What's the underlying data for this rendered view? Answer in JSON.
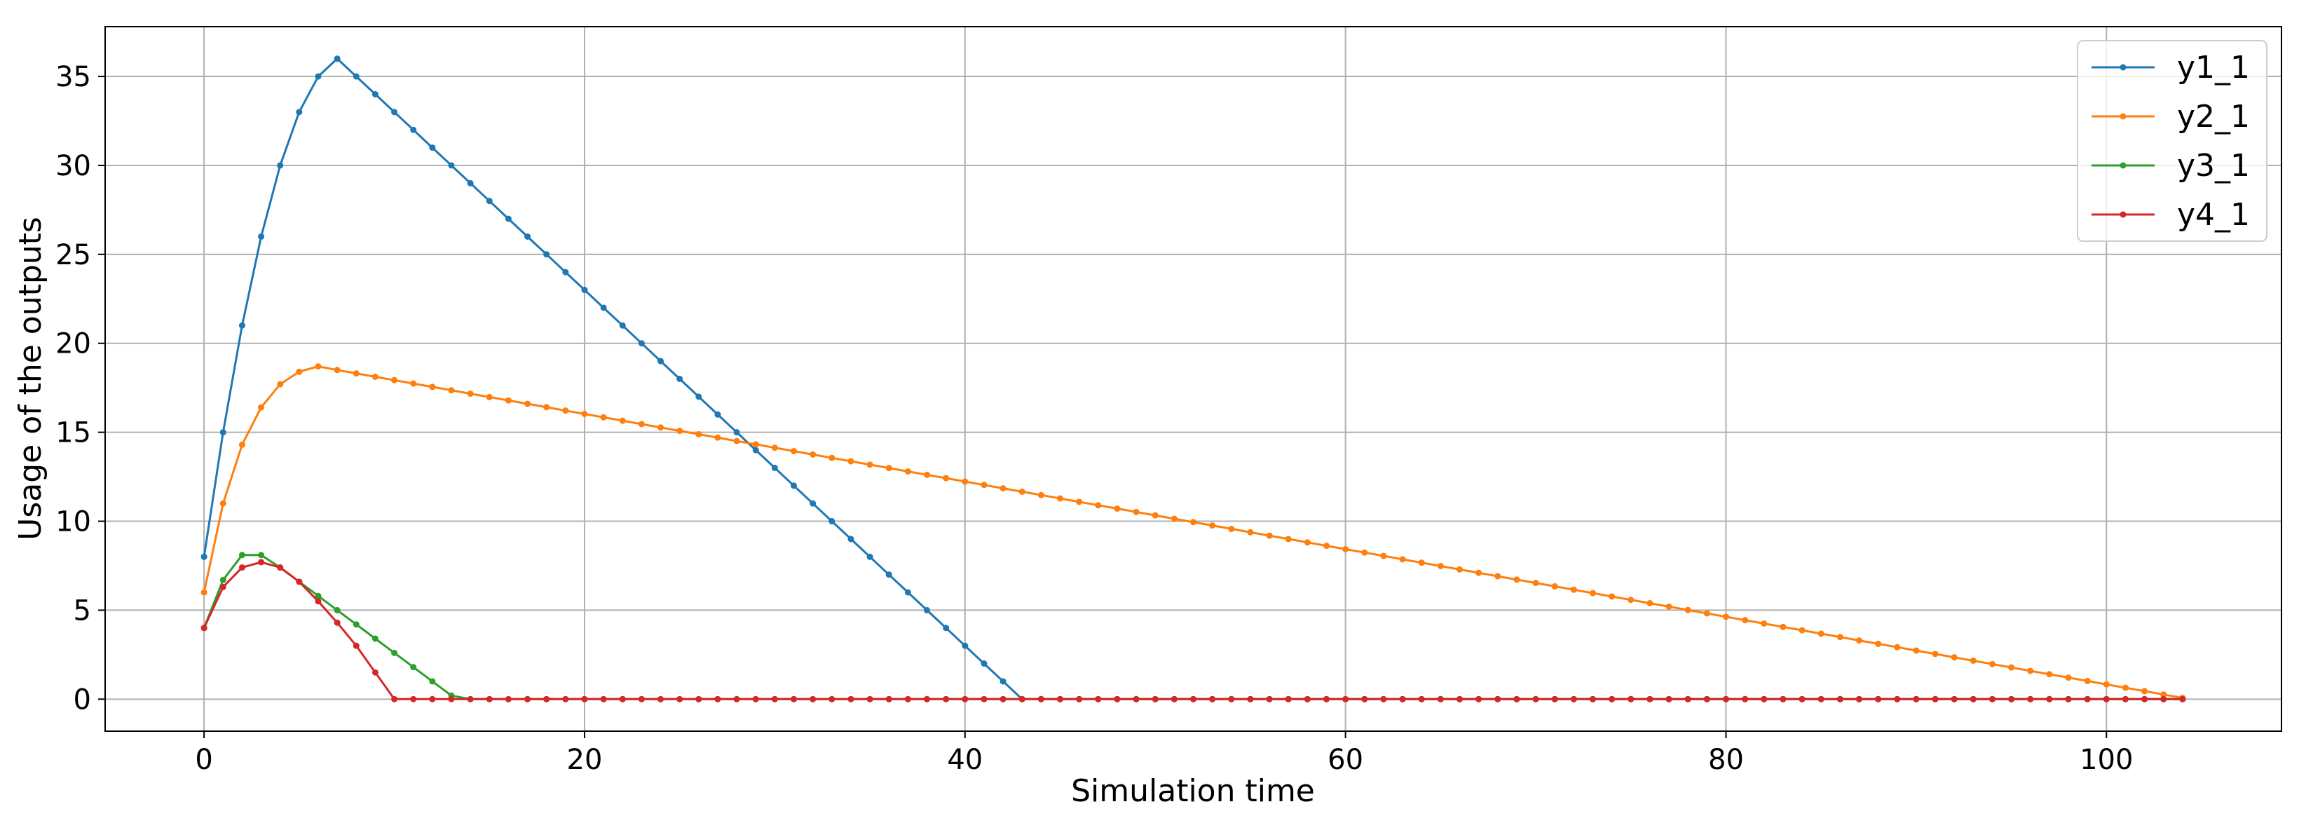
{
  "chart_data": {
    "type": "line",
    "xlabel": "Simulation time",
    "ylabel": "Usage of the outputs",
    "xlim": [
      -5.2,
      109.2
    ],
    "ylim": [
      -1.8,
      37.8
    ],
    "xticks": [
      0,
      20,
      40,
      60,
      80,
      100
    ],
    "yticks": [
      0,
      5,
      10,
      15,
      20,
      25,
      30,
      35
    ],
    "grid": true,
    "legend": "top-right",
    "x": [
      0,
      1,
      2,
      3,
      4,
      5,
      6,
      7,
      8,
      9,
      10,
      11,
      12,
      13,
      14,
      15,
      16,
      17,
      18,
      19,
      20,
      21,
      22,
      23,
      24,
      25,
      26,
      27,
      28,
      29,
      30,
      31,
      32,
      33,
      34,
      35,
      36,
      37,
      38,
      39,
      40,
      41,
      42,
      43,
      44,
      45,
      46,
      47,
      48,
      49,
      50,
      51,
      52,
      53,
      54,
      55,
      56,
      57,
      58,
      59,
      60,
      61,
      62,
      63,
      64,
      65,
      66,
      67,
      68,
      69,
      70,
      71,
      72,
      73,
      74,
      75,
      76,
      77,
      78,
      79,
      80,
      81,
      82,
      83,
      84,
      85,
      86,
      87,
      88,
      89,
      90,
      91,
      92,
      93,
      94,
      95,
      96,
      97,
      98,
      99,
      100,
      101,
      102,
      103,
      104
    ],
    "series": [
      {
        "name": "y1_1",
        "color": "#1f77b4",
        "values": [
          8,
          15,
          21,
          26,
          30,
          33,
          35,
          36,
          35,
          34,
          33,
          32,
          31,
          30,
          29,
          28,
          27,
          26,
          25,
          24,
          23,
          22,
          21,
          20,
          19,
          18,
          17,
          16,
          15,
          14,
          13,
          12,
          11,
          10,
          9,
          8,
          7,
          6,
          5,
          4,
          3,
          2,
          1,
          0,
          0,
          0,
          0,
          0,
          0,
          0,
          0,
          0,
          0,
          0,
          0,
          0,
          0,
          0,
          0,
          0,
          0,
          0,
          0,
          0,
          0,
          0,
          0,
          0,
          0,
          0,
          0,
          0,
          0,
          0,
          0,
          0,
          0,
          0,
          0,
          0,
          0,
          0,
          0,
          0,
          0,
          0,
          0,
          0,
          0,
          0,
          0,
          0,
          0,
          0,
          0,
          0,
          0,
          0,
          0,
          0,
          0,
          0,
          0,
          0,
          0
        ]
      },
      {
        "name": "y2_1",
        "color": "#ff7f0e",
        "values": [
          6,
          11,
          14.3,
          16.4,
          17.7,
          18.4,
          18.7,
          18.5,
          18.31,
          18.12,
          17.93,
          17.74,
          17.55,
          17.36,
          17.17,
          16.98,
          16.79,
          16.6,
          16.41,
          16.22,
          16.03,
          15.84,
          15.65,
          15.46,
          15.27,
          15.08,
          14.89,
          14.7,
          14.51,
          14.32,
          14.13,
          13.94,
          13.75,
          13.56,
          13.37,
          13.18,
          12.99,
          12.8,
          12.61,
          12.42,
          12.23,
          12.04,
          11.85,
          11.66,
          11.47,
          11.28,
          11.09,
          10.9,
          10.71,
          10.52,
          10.33,
          10.14,
          9.95,
          9.76,
          9.57,
          9.38,
          9.19,
          9,
          8.81,
          8.62,
          8.43,
          8.24,
          8.05,
          7.86,
          7.67,
          7.48,
          7.29,
          7.1,
          6.91,
          6.72,
          6.53,
          6.34,
          6.15,
          5.96,
          5.77,
          5.58,
          5.39,
          5.2,
          5.01,
          4.82,
          4.63,
          4.44,
          4.25,
          4.06,
          3.87,
          3.68,
          3.49,
          3.3,
          3.11,
          2.92,
          2.73,
          2.54,
          2.35,
          2.16,
          1.97,
          1.78,
          1.59,
          1.4,
          1.21,
          1.02,
          0.83,
          0.64,
          0.45,
          0.26,
          0.07
        ]
      },
      {
        "name": "y3_1",
        "color": "#2ca02c",
        "values": [
          4,
          6.7,
          8.1,
          8.1,
          7.4,
          6.6,
          5.8,
          5,
          4.2,
          3.4,
          2.6,
          1.8,
          1,
          0.2,
          0,
          0,
          0,
          0,
          0,
          0,
          0,
          0,
          0,
          0,
          0,
          0,
          0,
          0,
          0,
          0,
          0,
          0,
          0,
          0,
          0,
          0,
          0,
          0,
          0,
          0,
          0,
          0,
          0,
          0,
          0,
          0,
          0,
          0,
          0,
          0,
          0,
          0,
          0,
          0,
          0,
          0,
          0,
          0,
          0,
          0,
          0,
          0,
          0,
          0,
          0,
          0,
          0,
          0,
          0,
          0,
          0,
          0,
          0,
          0,
          0,
          0,
          0,
          0,
          0,
          0,
          0,
          0,
          0,
          0,
          0,
          0,
          0,
          0,
          0,
          0,
          0,
          0,
          0,
          0,
          0,
          0,
          0,
          0,
          0,
          0,
          0,
          0,
          0,
          0,
          0
        ]
      },
      {
        "name": "y4_1",
        "color": "#d62728",
        "values": [
          4,
          6.3,
          7.4,
          7.7,
          7.4,
          6.6,
          5.5,
          4.3,
          3,
          1.5,
          0,
          0,
          0,
          0,
          0,
          0,
          0,
          0,
          0,
          0,
          0,
          0,
          0,
          0,
          0,
          0,
          0,
          0,
          0,
          0,
          0,
          0,
          0,
          0,
          0,
          0,
          0,
          0,
          0,
          0,
          0,
          0,
          0,
          0,
          0,
          0,
          0,
          0,
          0,
          0,
          0,
          0,
          0,
          0,
          0,
          0,
          0,
          0,
          0,
          0,
          0,
          0,
          0,
          0,
          0,
          0,
          0,
          0,
          0,
          0,
          0,
          0,
          0,
          0,
          0,
          0,
          0,
          0,
          0,
          0,
          0,
          0,
          0,
          0,
          0,
          0,
          0,
          0,
          0,
          0,
          0,
          0,
          0,
          0,
          0,
          0,
          0,
          0,
          0,
          0,
          0,
          0,
          0,
          0,
          0
        ]
      }
    ]
  }
}
